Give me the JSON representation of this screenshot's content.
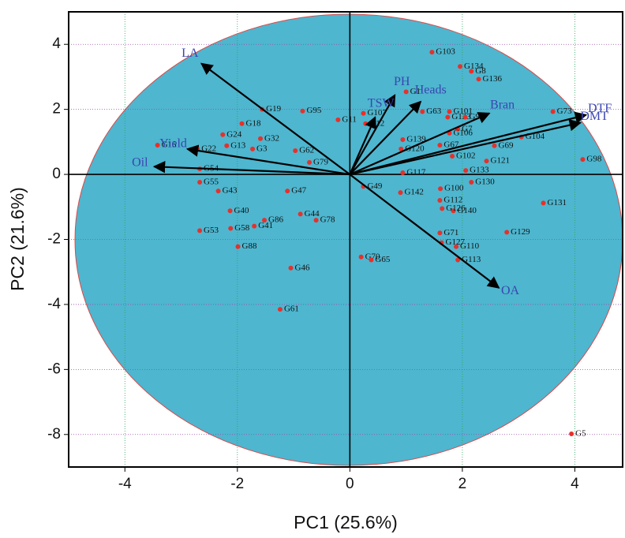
{
  "chart_data": {
    "type": "scatter",
    "xlabel": "PC1 (25.6%)",
    "ylabel": "PC2 (21.6%)",
    "xlim": [
      -5,
      4.85
    ],
    "ylim": [
      -9,
      5
    ],
    "xticks": [
      -4,
      -2,
      0,
      2,
      4
    ],
    "yticks": [
      4,
      2,
      0,
      -2,
      -4,
      -6,
      -8
    ],
    "grid": true,
    "color": "#e8302a",
    "loading_color": "#3a45b0",
    "points": {
      "labels": [
        "G103",
        "G134",
        "G8",
        "G136",
        "G1",
        "G63",
        "G101",
        "G123",
        "G9",
        "G7",
        "G106",
        "G73",
        "G104",
        "G69",
        "G98",
        "G121",
        "G130",
        "G133",
        "G100",
        "G112",
        "G140",
        "G131",
        "G129",
        "G71",
        "G110",
        "G113",
        "G127",
        "G5",
        "G70",
        "G65",
        "G46",
        "G61",
        "G88",
        "G53",
        "G55",
        "G15",
        "G22",
        "G54",
        "G19",
        "G18",
        "G24",
        "G13",
        "G3",
        "G32",
        "G95",
        "G11",
        "G107",
        "G12",
        "G62",
        "G79",
        "G47",
        "G43",
        "G40",
        "G58",
        "G41",
        "G86",
        "G44",
        "G78",
        "G49",
        "G139",
        "G102",
        "G67",
        "G126",
        "G117",
        "G120",
        "G142"
      ],
      "x": [
        1.46,
        1.96,
        2.16,
        2.29,
        1.0,
        1.29,
        1.77,
        1.74,
        2.05,
        1.92,
        1.77,
        3.61,
        3.05,
        2.57,
        4.14,
        2.43,
        2.16,
        2.06,
        1.61,
        1.6,
        1.84,
        3.44,
        2.79,
        1.6,
        1.89,
        1.92,
        1.63,
        3.94,
        0.2,
        0.38,
        -1.05,
        -1.24,
        -1.99,
        -2.67,
        -2.67,
        -3.42,
        -2.71,
        -2.67,
        -1.56,
        -1.92,
        -2.26,
        -2.19,
        -1.73,
        -1.59,
        -0.84,
        -0.21,
        0.24,
        0.28,
        -0.97,
        -0.72,
        -1.11,
        -2.34,
        -2.13,
        -2.12,
        -1.7,
        -1.52,
        -0.88,
        -0.6,
        0.24,
        0.94,
        1.82,
        1.6,
        1.64,
        0.94,
        0.91,
        0.9
      ],
      "y": [
        3.76,
        3.32,
        3.17,
        2.93,
        2.54,
        1.93,
        1.93,
        1.76,
        1.76,
        1.39,
        1.27,
        1.93,
        1.15,
        0.88,
        0.46,
        0.41,
        -0.24,
        0.12,
        -0.44,
        -0.8,
        -1.12,
        -0.88,
        -1.78,
        -1.8,
        -2.22,
        -2.63,
        -2.1,
        -7.98,
        -2.54,
        -2.63,
        -2.88,
        -4.15,
        -2.22,
        -1.73,
        -0.24,
        0.9,
        0.78,
        0.17,
        2.0,
        1.56,
        1.22,
        0.88,
        0.78,
        1.1,
        1.95,
        1.68,
        1.88,
        1.56,
        0.73,
        0.37,
        -0.51,
        -0.51,
        -1.12,
        -1.66,
        -1.59,
        -1.41,
        -1.22,
        -1.41,
        -0.37,
        1.07,
        0.56,
        0.9,
        -1.05,
        0.05,
        0.78,
        -0.56
      ]
    },
    "loadings": {
      "labels": [
        "LA",
        "PH",
        "Heads",
        "Bran",
        "DTF",
        "DMT",
        "TSW",
        "Yield",
        "Oil",
        "OA"
      ],
      "x": [
        -2.64,
        0.8,
        1.26,
        2.48,
        4.2,
        4.1,
        0.45,
        -2.89,
        -3.48,
        2.65
      ],
      "y": [
        3.41,
        2.44,
        2.24,
        1.88,
        1.83,
        1.59,
        1.76,
        0.78,
        0.24,
        -3.49
      ]
    }
  }
}
